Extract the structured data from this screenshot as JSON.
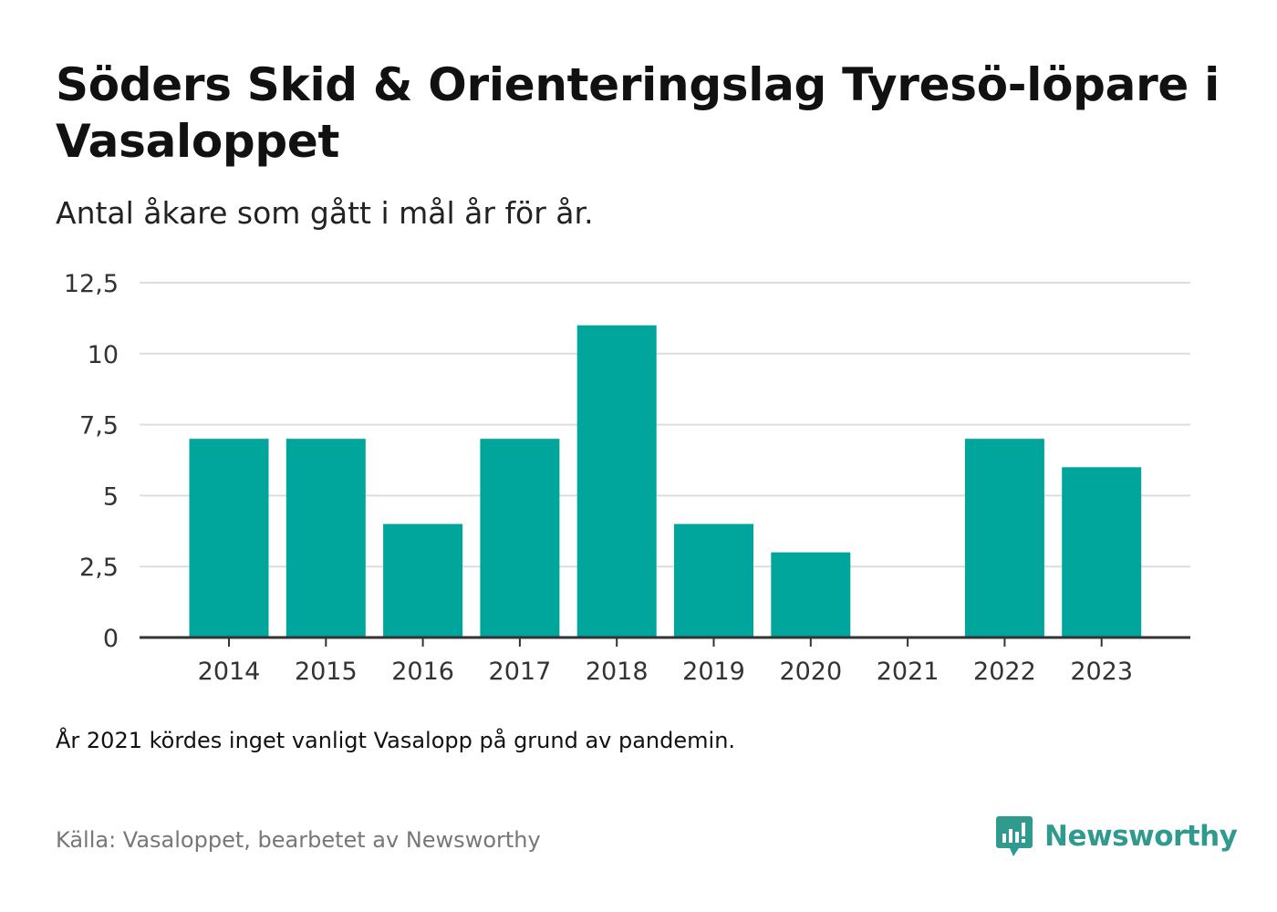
{
  "title": "Söders Skid & Orienteringslag Tyresö-löpare i Vasaloppet",
  "subtitle": "Antal åkare som gått i mål år för år.",
  "note": "År 2021 kördes inget vanligt Vasalopp på grund av pandemin.",
  "source": "Källa: Vasaloppet, bearbetet av Newsworthy",
  "brand": {
    "name": "Newsworthy",
    "icon": "newsworthy-logo-icon",
    "color": "#2f9a8d"
  },
  "chart_data": {
    "type": "bar",
    "categories": [
      "2014",
      "2015",
      "2016",
      "2017",
      "2018",
      "2019",
      "2020",
      "2021",
      "2022",
      "2023"
    ],
    "values": [
      7,
      7,
      4,
      7,
      11,
      4,
      3,
      0,
      7,
      6
    ],
    "ylim": [
      0,
      12.5
    ],
    "yticks": [
      0,
      2.5,
      5,
      7.5,
      10,
      12.5
    ],
    "ytick_labels": [
      "0",
      "2,5",
      "5",
      "7,5",
      "10",
      "12,5"
    ],
    "xlabel": "",
    "ylabel": "",
    "grid": true,
    "bar_color": "#00a69c",
    "grid_color": "#dddddd",
    "axis_color": "#333333"
  }
}
